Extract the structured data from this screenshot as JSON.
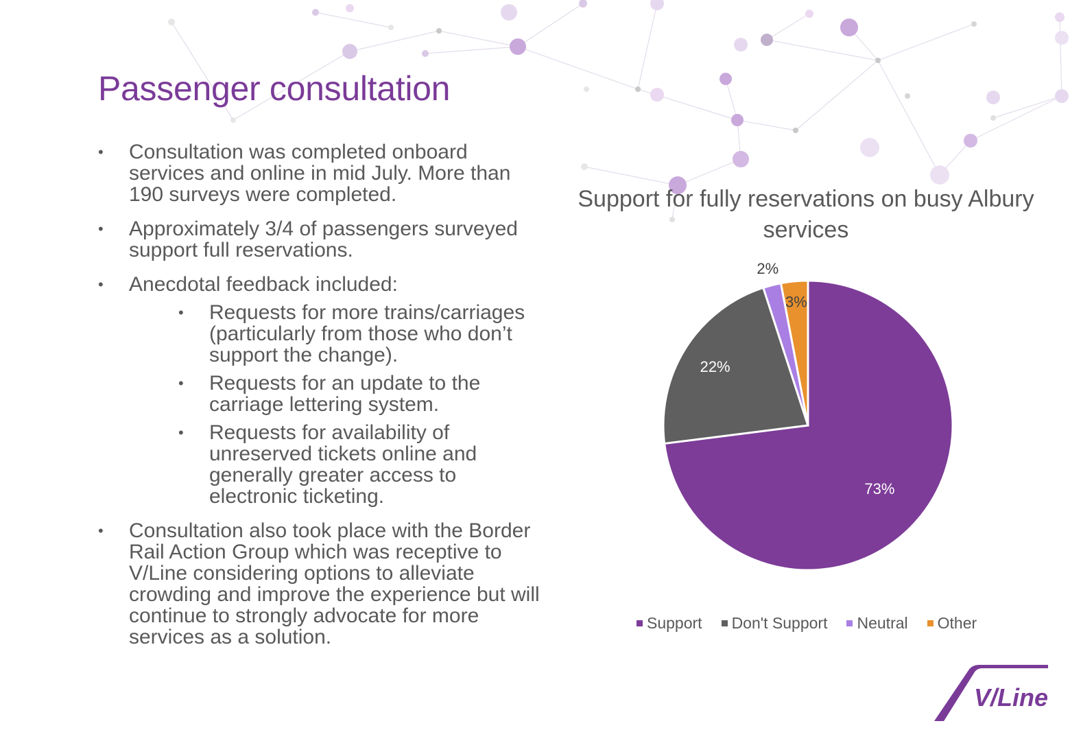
{
  "slide": {
    "title": "Passenger consultation",
    "bullets": [
      {
        "text": "Consultation was completed onboard services and online in mid July. More than 190 surveys were completed."
      },
      {
        "text": "Approximately 3/4 of passengers surveyed support full reservations."
      },
      {
        "text": "Anecdotal feedback included:",
        "sub": [
          "Requests for more trains/carriages (particularly from those who don’t support the change).",
          "Requests for an update to the carriage lettering system.",
          "Requests for availability of unreserved tickets online and generally greater access to electronic ticketing."
        ]
      },
      {
        "text": "Consultation also took place with the Border Rail Action Group which was receptive to V/Line considering options to alleviate crowding and improve the experience but will continue to strongly advocate for more services as a solution."
      }
    ],
    "bullet_glyph": "•"
  },
  "chart_data": {
    "type": "pie",
    "title_lines": [
      "Support for fully reservations on busy Albury",
      "services"
    ],
    "categories": [
      "Support",
      "Don't Support",
      "Neutral",
      "Other"
    ],
    "values": [
      73,
      22,
      2,
      3
    ],
    "data_labels": [
      "73%",
      "22%",
      "2%",
      "3%"
    ],
    "colors": [
      "#7d3c98",
      "#5f5f5f",
      "#a97fe3",
      "#e8912d"
    ],
    "start": "12 o'clock, clockwise",
    "legend_position": "bottom"
  },
  "logo": {
    "text": "V/Line",
    "color": "#7a3b98"
  },
  "colors": {
    "title": "#7a3b98",
    "body": "#595959",
    "network": "#d8c8e4"
  }
}
